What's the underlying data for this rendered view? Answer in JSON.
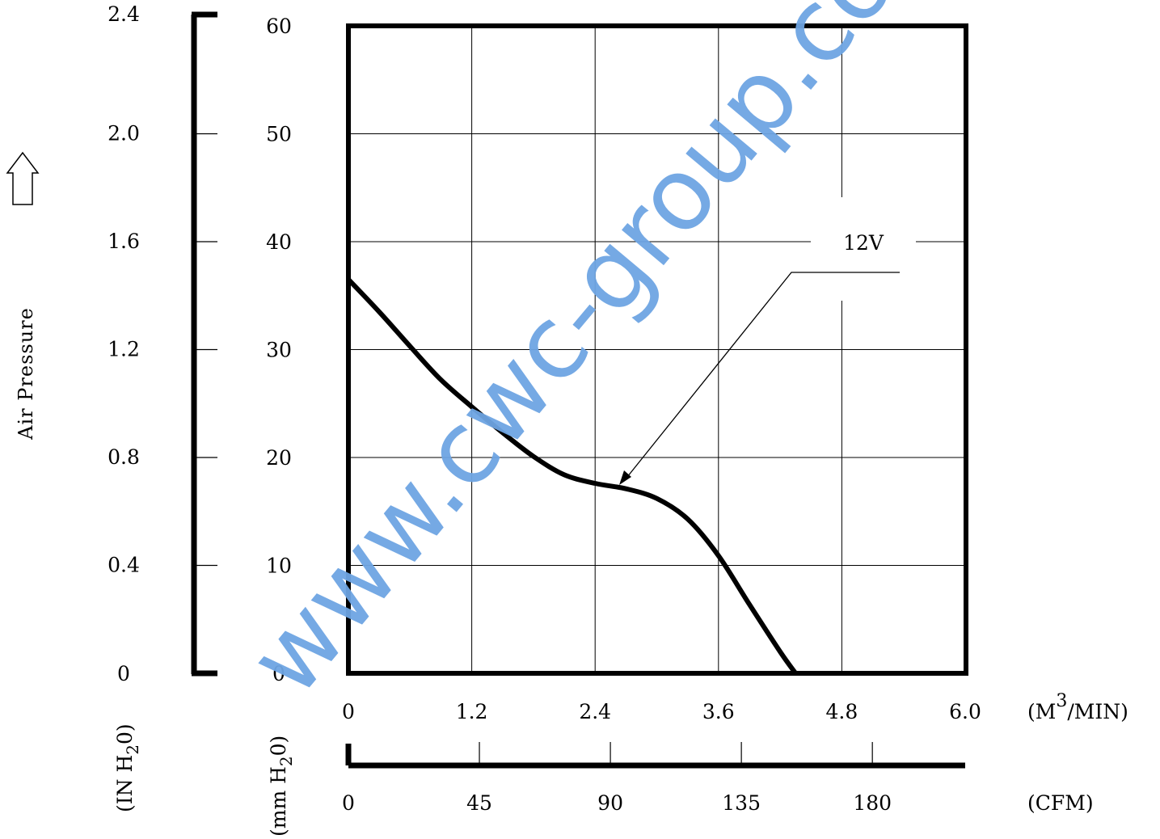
{
  "chart_data": {
    "type": "line",
    "title": "",
    "ylabel": "Air Pressure",
    "y_left": {
      "unit_main": "(IN H",
      "unit_sub": "2",
      "unit_end": "0)",
      "ticks": [
        "0",
        "0.4",
        "0.8",
        "1.2",
        "1.6",
        "2.0",
        "2.4"
      ],
      "ylim": [
        0,
        2.4
      ]
    },
    "y_right": {
      "unit_main": "(mm H",
      "unit_sub": "2",
      "unit_end": "0)",
      "ticks": [
        "0",
        "10",
        "20",
        "30",
        "40",
        "50",
        "60"
      ],
      "ylim": [
        0,
        60
      ]
    },
    "x_primary": {
      "unit_main": "(M",
      "unit_sup": "3",
      "unit_end": "/MIN)",
      "ticks": [
        "0",
        "1.2",
        "2.4",
        "3.6",
        "4.8",
        "6.0"
      ],
      "xlim": [
        0,
        6.0
      ]
    },
    "x_secondary": {
      "unit": "(CFM)",
      "ticks": [
        "0",
        "45",
        "90",
        "135",
        "180"
      ],
      "values": [
        0,
        45,
        90,
        135,
        180
      ]
    },
    "grid": true,
    "series": [
      {
        "name": "12V",
        "x": [
          0,
          0.3,
          0.6,
          0.9,
          1.2,
          1.5,
          1.8,
          2.1,
          2.4,
          2.7,
          3.0,
          3.3,
          3.6,
          3.9,
          4.2,
          4.35
        ],
        "y": [
          36.5,
          33.5,
          30.3,
          27.2,
          24.7,
          22.3,
          20.1,
          18.4,
          17.6,
          17.1,
          16.2,
          14.3,
          10.9,
          6.4,
          2.0,
          0
        ]
      }
    ]
  },
  "watermark": "www.cwc-group.com",
  "icons": {
    "pressure_direction": "up-arrow-icon"
  },
  "colors": {
    "line": "#000000",
    "watermark": "#6ea5e3",
    "background": "#ffffff"
  }
}
